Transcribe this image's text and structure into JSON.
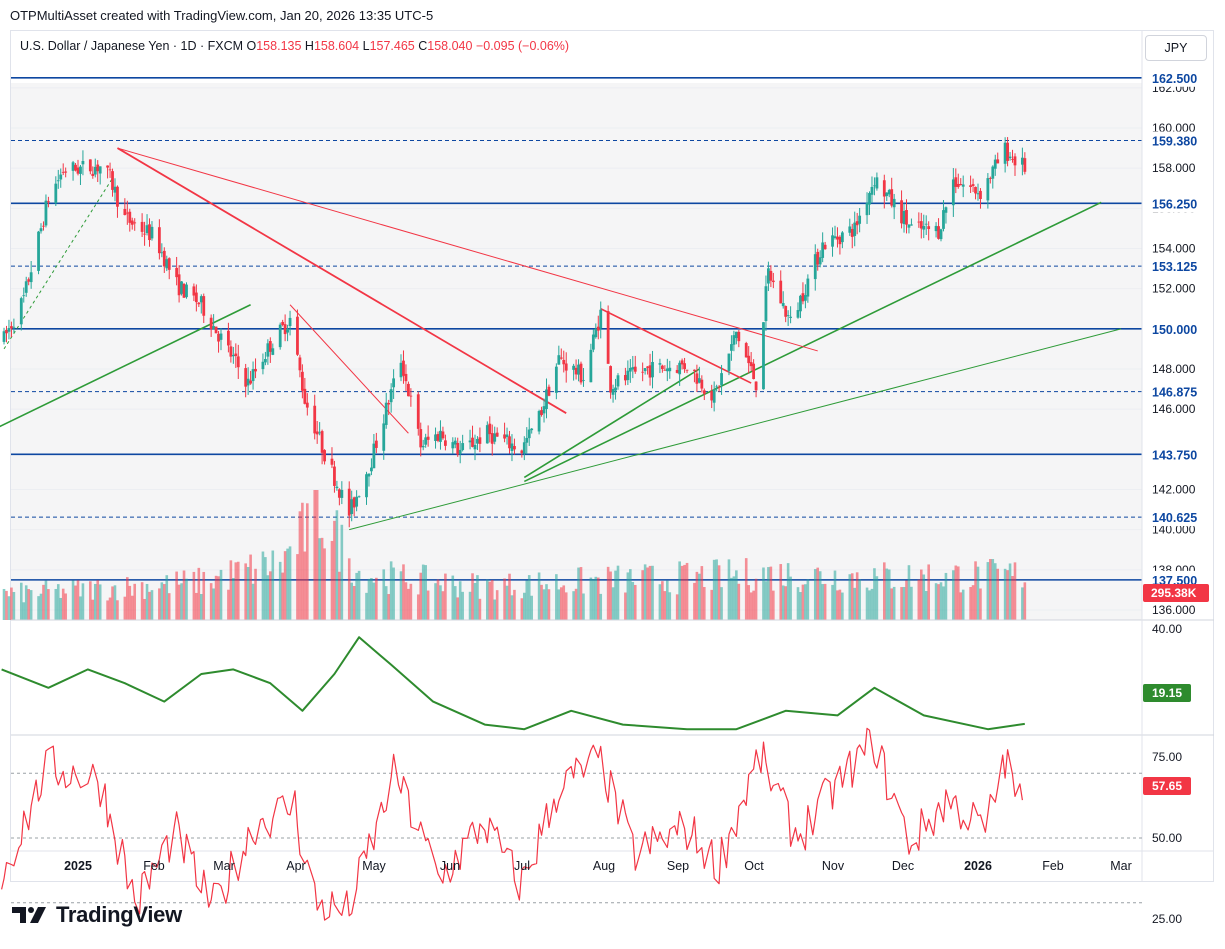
{
  "header": {
    "title": "OTPMultiAsset created with TradingView.com, Jan 20, 2026 13:35 UTC-5"
  },
  "legend": {
    "symbol": "U.S. Dollar / Japanese Yen · 1D · FXCM",
    "o_label": "O",
    "o": "158.135",
    "h_label": "H",
    "h": "158.604",
    "l_label": "L",
    "l": "157.465",
    "c_label": "C",
    "c": "158.040",
    "change": "−0.095 (−0.06%)"
  },
  "currency_button": "JPY",
  "brand": "TradingView",
  "colors": {
    "up": "#26a69a",
    "down": "#f23645",
    "level": "#0d47a1",
    "trend_green": "#2e9b38",
    "trend_red": "#f23645"
  },
  "chart_data": {
    "type": "candlestick",
    "price_axis": {
      "range": [
        135.0,
        163.5
      ],
      "ticks": [
        "162.000",
        "160.000",
        "158.000",
        "156.000",
        "154.000",
        "152.000",
        "150.000",
        "148.000",
        "146.000",
        "142.000",
        "140.000",
        "138.000",
        "136.000"
      ]
    },
    "level_labels": [
      {
        "value": 162.5,
        "text": "162.500",
        "style": "solid"
      },
      {
        "value": 159.38,
        "text": "159.380",
        "style": "dashed"
      },
      {
        "value": 156.25,
        "text": "156.250",
        "style": "solid"
      },
      {
        "value": 153.125,
        "text": "153.125",
        "style": "dashed"
      },
      {
        "value": 150.0,
        "text": "150.000",
        "style": "solid"
      },
      {
        "value": 146.875,
        "text": "146.875",
        "style": "dashed"
      },
      {
        "value": 143.75,
        "text": "143.750",
        "style": "solid"
      },
      {
        "value": 140.625,
        "text": "140.625",
        "style": "dashed"
      },
      {
        "value": 137.5,
        "text": "137.500",
        "style": "solid"
      }
    ],
    "volume_label": "295.38K",
    "time_axis": [
      "2025",
      "Feb",
      "Mar",
      "Apr",
      "May",
      "Jun",
      "Jul",
      "Aug",
      "Sep",
      "Oct",
      "Nov",
      "Dec",
      "2026",
      "Feb",
      "Mar"
    ],
    "price_path": [
      [
        "2024-12-02",
        149.5
      ],
      [
        "2024-12-10",
        151.5
      ],
      [
        "2024-12-20",
        156.5
      ],
      [
        "2024-12-26",
        157.9
      ],
      [
        "2025-01-10",
        158.1
      ],
      [
        "2025-01-14",
        157.5
      ],
      [
        "2025-01-20",
        155.5
      ],
      [
        "2025-02-01",
        154.6
      ],
      [
        "2025-02-10",
        152.2
      ],
      [
        "2025-02-20",
        151.2
      ],
      [
        "2025-03-03",
        148.9
      ],
      [
        "2025-03-11",
        147.3
      ],
      [
        "2025-03-20",
        149.2
      ],
      [
        "2025-03-28",
        150.5
      ],
      [
        "2025-04-03",
        146.5
      ],
      [
        "2025-04-11",
        143.8
      ],
      [
        "2025-04-21",
        140.8
      ],
      [
        "2025-04-30",
        143.5
      ],
      [
        "2025-05-12",
        148.5
      ],
      [
        "2025-05-20",
        144.2
      ],
      [
        "2025-05-28",
        144.8
      ],
      [
        "2025-06-05",
        143.9
      ],
      [
        "2025-06-16",
        144.8
      ],
      [
        "2025-06-30",
        144.0
      ],
      [
        "2025-07-07",
        145.6
      ],
      [
        "2025-07-15",
        148.5
      ],
      [
        "2025-07-25",
        147.6
      ],
      [
        "2025-08-01",
        150.8
      ],
      [
        "2025-08-05",
        147.2
      ],
      [
        "2025-08-20",
        148.0
      ],
      [
        "2025-09-05",
        148.2
      ],
      [
        "2025-09-16",
        146.6
      ],
      [
        "2025-09-25",
        149.8
      ],
      [
        "2025-10-03",
        147.3
      ],
      [
        "2025-10-08",
        152.8
      ],
      [
        "2025-10-17",
        150.3
      ],
      [
        "2025-10-30",
        154.2
      ],
      [
        "2025-11-12",
        155.0
      ],
      [
        "2025-11-20",
        157.5
      ],
      [
        "2025-12-05",
        155.0
      ],
      [
        "2025-12-16",
        154.9
      ],
      [
        "2025-12-22",
        157.4
      ],
      [
        "2026-01-02",
        156.8
      ],
      [
        "2026-01-12",
        158.9
      ],
      [
        "2026-01-15",
        158.5
      ],
      [
        "2026-01-20",
        158.04
      ]
    ],
    "volume_path": [
      [
        "2024-12-02",
        170
      ],
      [
        "2025-01-15",
        210
      ],
      [
        "2025-02-20",
        250
      ],
      [
        "2025-03-25",
        380
      ],
      [
        "2025-04-09",
        720
      ],
      [
        "2025-04-25",
        300
      ],
      [
        "2025-06-15",
        220
      ],
      [
        "2025-08-05",
        260
      ],
      [
        "2025-10-10",
        300
      ],
      [
        "2025-11-20",
        280
      ],
      [
        "2026-01-20",
        295
      ]
    ],
    "indicator1": {
      "axis_ticks": [
        "40.00"
      ],
      "last_value": "19.15",
      "path": [
        [
          "2024-12-01",
          31
        ],
        [
          "2024-12-20",
          27
        ],
        [
          "2025-01-05",
          31
        ],
        [
          "2025-01-20",
          28
        ],
        [
          "2025-02-05",
          24
        ],
        [
          "2025-02-20",
          30
        ],
        [
          "2025-03-05",
          31
        ],
        [
          "2025-03-20",
          28
        ],
        [
          "2025-04-02",
          22
        ],
        [
          "2025-04-15",
          30
        ],
        [
          "2025-04-25",
          38
        ],
        [
          "2025-05-08",
          32
        ],
        [
          "2025-05-25",
          24
        ],
        [
          "2025-06-15",
          19
        ],
        [
          "2025-07-01",
          18
        ],
        [
          "2025-07-20",
          22
        ],
        [
          "2025-08-10",
          19
        ],
        [
          "2025-09-05",
          18
        ],
        [
          "2025-09-25",
          18
        ],
        [
          "2025-10-15",
          22
        ],
        [
          "2025-11-05",
          21
        ],
        [
          "2025-11-20",
          27
        ],
        [
          "2025-12-10",
          21
        ],
        [
          "2026-01-05",
          18
        ],
        [
          "2026-01-20",
          19.15
        ]
      ]
    },
    "indicator2": {
      "axis_ticks": [
        "75.00",
        "50.00",
        "25.00"
      ],
      "reference_lines": [
        70,
        50,
        30
      ],
      "last_value": "57.65",
      "path": [
        [
          "2024-12-01",
          37
        ],
        [
          "2024-12-20",
          72
        ],
        [
          "2025-01-10",
          68
        ],
        [
          "2025-01-25",
          30
        ],
        [
          "2025-02-10",
          52
        ],
        [
          "2025-02-25",
          28
        ],
        [
          "2025-03-15",
          55
        ],
        [
          "2025-03-30",
          60
        ],
        [
          "2025-04-08",
          30
        ],
        [
          "2025-04-21",
          27
        ],
        [
          "2025-05-10",
          70
        ],
        [
          "2025-05-28",
          37
        ],
        [
          "2025-06-15",
          55
        ],
        [
          "2025-06-30",
          35
        ],
        [
          "2025-07-15",
          65
        ],
        [
          "2025-08-01",
          74
        ],
        [
          "2025-08-15",
          45
        ],
        [
          "2025-09-05",
          53
        ],
        [
          "2025-09-18",
          42
        ],
        [
          "2025-10-05",
          75
        ],
        [
          "2025-10-20",
          50
        ],
        [
          "2025-11-05",
          66
        ],
        [
          "2025-11-20",
          80
        ],
        [
          "2025-12-05",
          48
        ],
        [
          "2025-12-20",
          62
        ],
        [
          "2026-01-05",
          52
        ],
        [
          "2026-01-12",
          75
        ],
        [
          "2026-01-20",
          57.65
        ]
      ]
    }
  }
}
